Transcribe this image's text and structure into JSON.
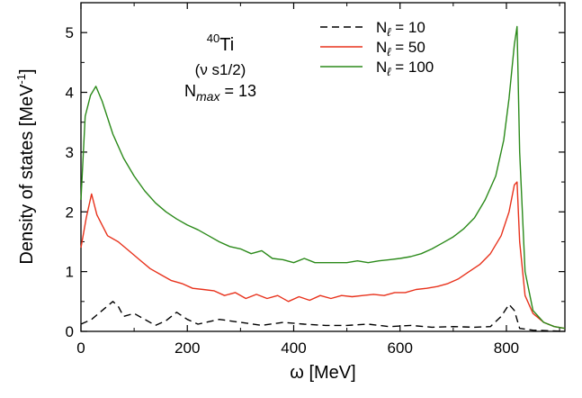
{
  "chart_data": {
    "type": "line",
    "xlabel": "ω [MeV]",
    "ylabel": "Density of states [MeV",
    "ylabel_sup": "-1",
    "ylabel_end": "]",
    "xlim": [
      0,
      910
    ],
    "ylim": [
      0,
      5.5
    ],
    "x_ticks": [
      0,
      200,
      400,
      600,
      800
    ],
    "y_ticks": [
      0,
      1,
      2,
      3,
      4,
      5
    ],
    "annotation": {
      "isotope_mass": "40",
      "isotope_symbol": "Ti",
      "orbital": "(ν s1/2)",
      "nmax_base": "N",
      "nmax_sub": "max",
      "nmax_value": " = 13"
    },
    "legend_position": "top-right",
    "series": [
      {
        "name_base": "N",
        "name_sub": "ℓ",
        "name_value": " = 10",
        "color": "#000000",
        "dash": "8,5",
        "points": [
          [
            0,
            0.12
          ],
          [
            20,
            0.2
          ],
          [
            40,
            0.35
          ],
          [
            60,
            0.5
          ],
          [
            70,
            0.42
          ],
          [
            80,
            0.25
          ],
          [
            100,
            0.3
          ],
          [
            120,
            0.2
          ],
          [
            140,
            0.1
          ],
          [
            160,
            0.18
          ],
          [
            180,
            0.32
          ],
          [
            200,
            0.2
          ],
          [
            220,
            0.12
          ],
          [
            260,
            0.2
          ],
          [
            300,
            0.15
          ],
          [
            340,
            0.1
          ],
          [
            380,
            0.15
          ],
          [
            420,
            0.12
          ],
          [
            460,
            0.1
          ],
          [
            500,
            0.1
          ],
          [
            540,
            0.12
          ],
          [
            580,
            0.08
          ],
          [
            620,
            0.1
          ],
          [
            660,
            0.07
          ],
          [
            700,
            0.08
          ],
          [
            740,
            0.07
          ],
          [
            770,
            0.08
          ],
          [
            790,
            0.25
          ],
          [
            805,
            0.45
          ],
          [
            815,
            0.35
          ],
          [
            825,
            0.05
          ],
          [
            850,
            0.02
          ],
          [
            880,
            0.01
          ],
          [
            910,
            0.0
          ]
        ]
      },
      {
        "name_base": "N",
        "name_sub": "ℓ",
        "name_value": " = 50",
        "color": "#e8321c",
        "dash": "",
        "points": [
          [
            0,
            1.4
          ],
          [
            10,
            1.9
          ],
          [
            20,
            2.3
          ],
          [
            30,
            1.95
          ],
          [
            50,
            1.6
          ],
          [
            70,
            1.5
          ],
          [
            90,
            1.35
          ],
          [
            110,
            1.2
          ],
          [
            130,
            1.05
          ],
          [
            150,
            0.95
          ],
          [
            170,
            0.85
          ],
          [
            190,
            0.8
          ],
          [
            210,
            0.72
          ],
          [
            230,
            0.7
          ],
          [
            250,
            0.68
          ],
          [
            270,
            0.6
          ],
          [
            290,
            0.65
          ],
          [
            310,
            0.55
          ],
          [
            330,
            0.62
          ],
          [
            350,
            0.55
          ],
          [
            370,
            0.6
          ],
          [
            390,
            0.5
          ],
          [
            410,
            0.58
          ],
          [
            430,
            0.52
          ],
          [
            450,
            0.6
          ],
          [
            470,
            0.55
          ],
          [
            490,
            0.6
          ],
          [
            510,
            0.58
          ],
          [
            530,
            0.6
          ],
          [
            550,
            0.62
          ],
          [
            570,
            0.6
          ],
          [
            590,
            0.65
          ],
          [
            610,
            0.65
          ],
          [
            630,
            0.7
          ],
          [
            650,
            0.72
          ],
          [
            670,
            0.75
          ],
          [
            690,
            0.8
          ],
          [
            710,
            0.88
          ],
          [
            730,
            1.0
          ],
          [
            750,
            1.12
          ],
          [
            770,
            1.3
          ],
          [
            790,
            1.6
          ],
          [
            805,
            2.0
          ],
          [
            815,
            2.45
          ],
          [
            820,
            2.5
          ],
          [
            825,
            1.5
          ],
          [
            835,
            0.6
          ],
          [
            850,
            0.3
          ],
          [
            870,
            0.15
          ],
          [
            890,
            0.08
          ],
          [
            910,
            0.05
          ]
        ]
      },
      {
        "name_base": "N",
        "name_sub": "ℓ",
        "name_value": " = 100",
        "color": "#2b8a1a",
        "dash": "",
        "points": [
          [
            0,
            2.2
          ],
          [
            8,
            3.6
          ],
          [
            18,
            3.95
          ],
          [
            28,
            4.1
          ],
          [
            40,
            3.85
          ],
          [
            60,
            3.3
          ],
          [
            80,
            2.9
          ],
          [
            100,
            2.6
          ],
          [
            120,
            2.35
          ],
          [
            140,
            2.15
          ],
          [
            160,
            2.0
          ],
          [
            180,
            1.88
          ],
          [
            200,
            1.78
          ],
          [
            220,
            1.7
          ],
          [
            240,
            1.6
          ],
          [
            260,
            1.5
          ],
          [
            280,
            1.42
          ],
          [
            300,
            1.38
          ],
          [
            320,
            1.3
          ],
          [
            340,
            1.35
          ],
          [
            360,
            1.22
          ],
          [
            380,
            1.2
          ],
          [
            400,
            1.15
          ],
          [
            420,
            1.22
          ],
          [
            440,
            1.15
          ],
          [
            460,
            1.15
          ],
          [
            480,
            1.15
          ],
          [
            500,
            1.15
          ],
          [
            520,
            1.18
          ],
          [
            540,
            1.15
          ],
          [
            560,
            1.18
          ],
          [
            580,
            1.2
          ],
          [
            600,
            1.22
          ],
          [
            620,
            1.25
          ],
          [
            640,
            1.3
          ],
          [
            660,
            1.38
          ],
          [
            680,
            1.48
          ],
          [
            700,
            1.58
          ],
          [
            720,
            1.72
          ],
          [
            740,
            1.9
          ],
          [
            760,
            2.2
          ],
          [
            780,
            2.6
          ],
          [
            795,
            3.2
          ],
          [
            805,
            3.9
          ],
          [
            815,
            4.8
          ],
          [
            820,
            5.1
          ],
          [
            825,
            3.0
          ],
          [
            835,
            1.0
          ],
          [
            850,
            0.35
          ],
          [
            870,
            0.15
          ],
          [
            890,
            0.08
          ],
          [
            910,
            0.05
          ]
        ]
      }
    ]
  }
}
